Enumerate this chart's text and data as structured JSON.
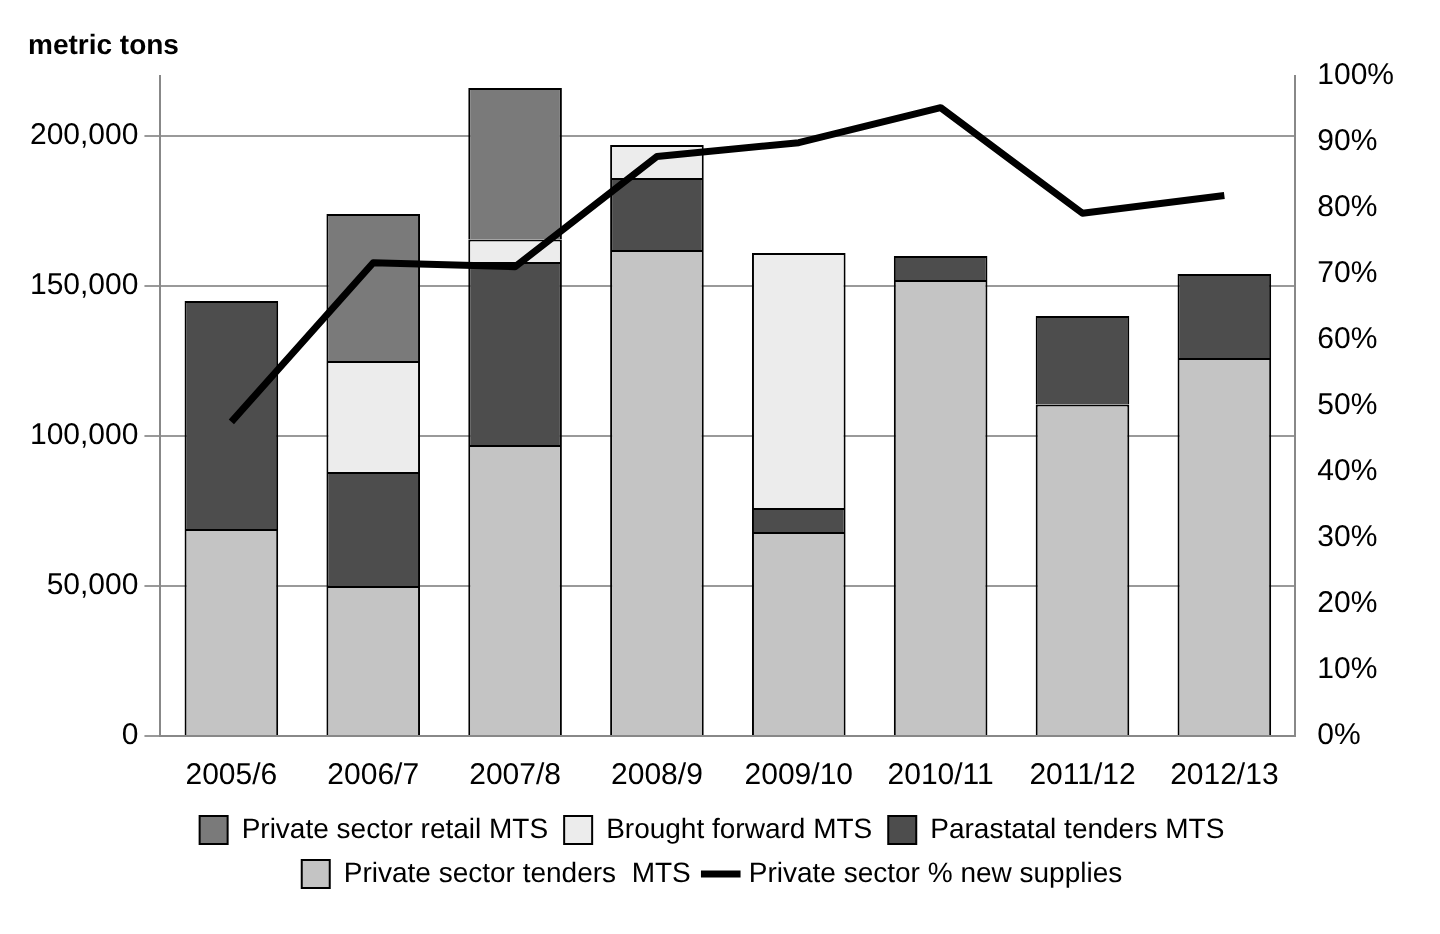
{
  "chart_data": {
    "type": "bar",
    "stacked": true,
    "ylabel": "metric tons",
    "categories": [
      "2005/6",
      "2006/7",
      "2007/8",
      "2008/9",
      "2009/10",
      "2010/11",
      "2011/12",
      "2012/13"
    ],
    "series": [
      {
        "name": "Private sector tenders  MTS",
        "color": "#c4c4c4",
        "values": [
          69000,
          50000,
          97000,
          162000,
          68000,
          152000,
          110500,
          126000
        ]
      },
      {
        "name": "Parastatal tenders MTS",
        "color": "#4d4d4d",
        "values": [
          76000,
          38000,
          61000,
          24000,
          8000,
          8000,
          29500,
          28000
        ]
      },
      {
        "name": "Brought forward MTS",
        "color": "#ececec",
        "values": [
          null,
          37000,
          7500,
          11000,
          85000,
          null,
          null,
          null
        ]
      },
      {
        "name": "Private sector retail MTS",
        "color": "#7a7a7a",
        "values": [
          null,
          49000,
          50500,
          null,
          null,
          null,
          null,
          null
        ]
      },
      {
        "name": "Private sector % new supplies",
        "type": "line",
        "axis": "y2",
        "color": "#000000",
        "values": [
          47.6,
          71.7,
          71.1,
          87.8,
          89.9,
          95.2,
          79.2,
          81.9
        ]
      }
    ],
    "ylim": [
      0,
      220000
    ],
    "yticks": [
      {
        "value": 0,
        "label": "0"
      },
      {
        "value": 50000,
        "label": "50,000"
      },
      {
        "value": 100000,
        "label": "100,000"
      },
      {
        "value": 150000,
        "label": "150,000"
      },
      {
        "value": 200000,
        "label": "200,000"
      }
    ],
    "y2lim": [
      0,
      100
    ],
    "y2ticks": [
      {
        "value": 0,
        "label": "0%"
      },
      {
        "value": 10,
        "label": "10%"
      },
      {
        "value": 20,
        "label": "20%"
      },
      {
        "value": 30,
        "label": "30%"
      },
      {
        "value": 40,
        "label": "40%"
      },
      {
        "value": 50,
        "label": "50%"
      },
      {
        "value": 60,
        "label": "60%"
      },
      {
        "value": 70,
        "label": "70%"
      },
      {
        "value": 80,
        "label": "80%"
      },
      {
        "value": 90,
        "label": "90%"
      },
      {
        "value": 100,
        "label": "100%"
      }
    ],
    "grid": "y",
    "legend": "bottom",
    "marker": "none",
    "line_style": "solid"
  }
}
